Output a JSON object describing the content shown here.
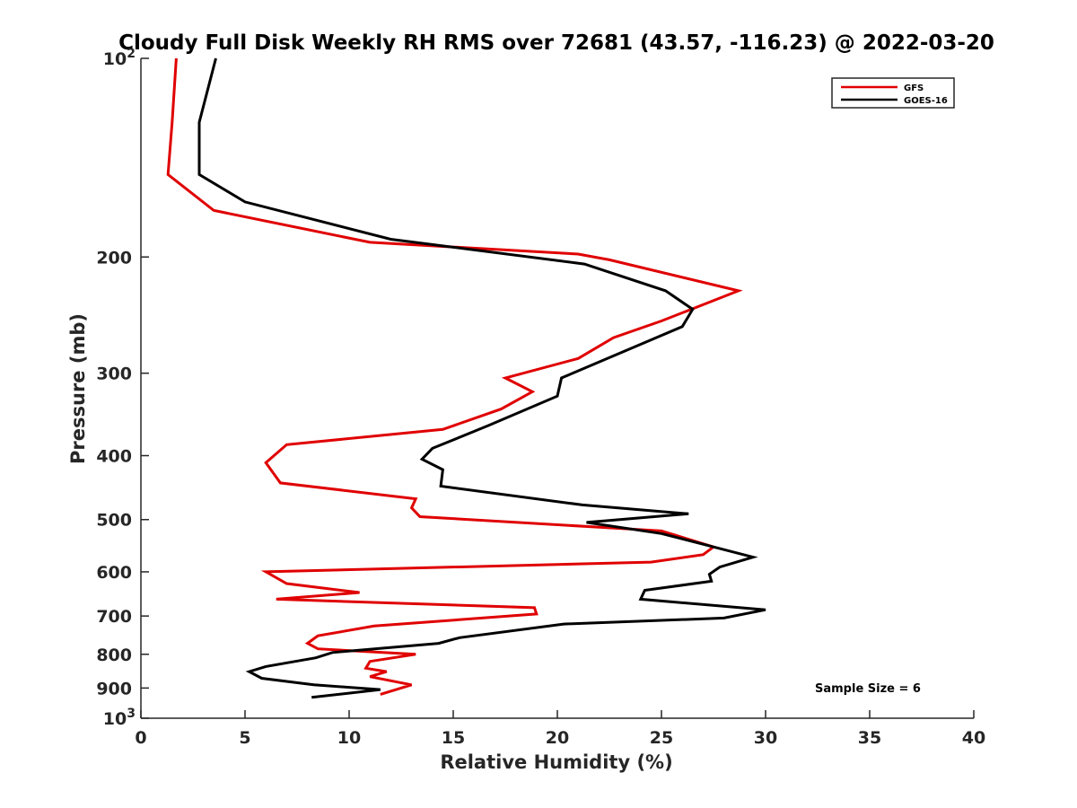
{
  "chart_data": {
    "type": "line",
    "title": "Cloudy Full Disk Weekly RH RMS over 72681 (43.57, -116.23) @ 2022-03-20",
    "xlabel": "Relative Humidity (%)",
    "ylabel": "Pressure (mb)",
    "xlim": [
      0,
      40
    ],
    "ylim": [
      100,
      1000
    ],
    "y_scale": "log",
    "y_reversed": true,
    "x_ticks": [
      "0",
      "5",
      "10",
      "15",
      "20",
      "25",
      "30",
      "35",
      "40"
    ],
    "y_ticks": [
      {
        "value": 100,
        "base": "10",
        "exp": "2"
      },
      {
        "value": 200,
        "label": "200"
      },
      {
        "value": 300,
        "label": "300"
      },
      {
        "value": 400,
        "label": "400"
      },
      {
        "value": 500,
        "label": "500"
      },
      {
        "value": 600,
        "label": "600"
      },
      {
        "value": 700,
        "label": "700"
      },
      {
        "value": 800,
        "label": "800"
      },
      {
        "value": 900,
        "label": "900"
      },
      {
        "value": 1000,
        "base": "10",
        "exp": "3"
      }
    ],
    "legend_position": "top-right",
    "series": [
      {
        "name": "GFS",
        "color": "#e00000",
        "points": [
          [
            1.7,
            100
          ],
          [
            1.5,
            125
          ],
          [
            1.3,
            150
          ],
          [
            3.5,
            170
          ],
          [
            11.0,
            190
          ],
          [
            21.0,
            198
          ],
          [
            22.5,
            202
          ],
          [
            28.7,
            225
          ],
          [
            25.0,
            250
          ],
          [
            22.7,
            265
          ],
          [
            21.0,
            285
          ],
          [
            17.5,
            305
          ],
          [
            18.8,
            320
          ],
          [
            17.3,
            340
          ],
          [
            14.5,
            365
          ],
          [
            7.0,
            385
          ],
          [
            6.0,
            410
          ],
          [
            6.7,
            440
          ],
          [
            13.2,
            465
          ],
          [
            13.0,
            480
          ],
          [
            13.4,
            495
          ],
          [
            25.0,
            520
          ],
          [
            27.5,
            550
          ],
          [
            27.0,
            565
          ],
          [
            24.5,
            580
          ],
          [
            6.0,
            600
          ],
          [
            7.0,
            625
          ],
          [
            10.5,
            645
          ],
          [
            6.5,
            660
          ],
          [
            18.9,
            680
          ],
          [
            19.0,
            695
          ],
          [
            11.2,
            725
          ],
          [
            8.5,
            750
          ],
          [
            8.0,
            770
          ],
          [
            8.5,
            785
          ],
          [
            13.2,
            800
          ],
          [
            11.0,
            820
          ],
          [
            10.8,
            840
          ],
          [
            11.8,
            850
          ],
          [
            11.0,
            865
          ],
          [
            13.0,
            890
          ],
          [
            11.5,
            920
          ]
        ]
      },
      {
        "name": "GOES-16",
        "color": "#000000",
        "points": [
          [
            3.6,
            100
          ],
          [
            2.8,
            125
          ],
          [
            2.8,
            150
          ],
          [
            5.0,
            165
          ],
          [
            12.0,
            188
          ],
          [
            21.3,
            205
          ],
          [
            25.2,
            225
          ],
          [
            26.5,
            240
          ],
          [
            26.0,
            255
          ],
          [
            20.2,
            305
          ],
          [
            20.0,
            325
          ],
          [
            16.7,
            360
          ],
          [
            14.0,
            390
          ],
          [
            13.5,
            405
          ],
          [
            14.5,
            420
          ],
          [
            14.4,
            445
          ],
          [
            21.2,
            475
          ],
          [
            26.3,
            490
          ],
          [
            21.4,
            505
          ],
          [
            25.0,
            525
          ],
          [
            27.5,
            550
          ],
          [
            29.4,
            570
          ],
          [
            27.8,
            590
          ],
          [
            27.3,
            605
          ],
          [
            27.4,
            620
          ],
          [
            24.2,
            640
          ],
          [
            24.0,
            660
          ],
          [
            30.0,
            685
          ],
          [
            28.0,
            705
          ],
          [
            20.3,
            720
          ],
          [
            15.3,
            755
          ],
          [
            14.3,
            770
          ],
          [
            9.2,
            795
          ],
          [
            8.4,
            810
          ],
          [
            6.0,
            835
          ],
          [
            5.2,
            850
          ],
          [
            5.8,
            870
          ],
          [
            8.3,
            890
          ],
          [
            11.5,
            905
          ],
          [
            8.2,
            930
          ]
        ]
      }
    ],
    "annotations": [
      "Sample Size = 6"
    ]
  }
}
